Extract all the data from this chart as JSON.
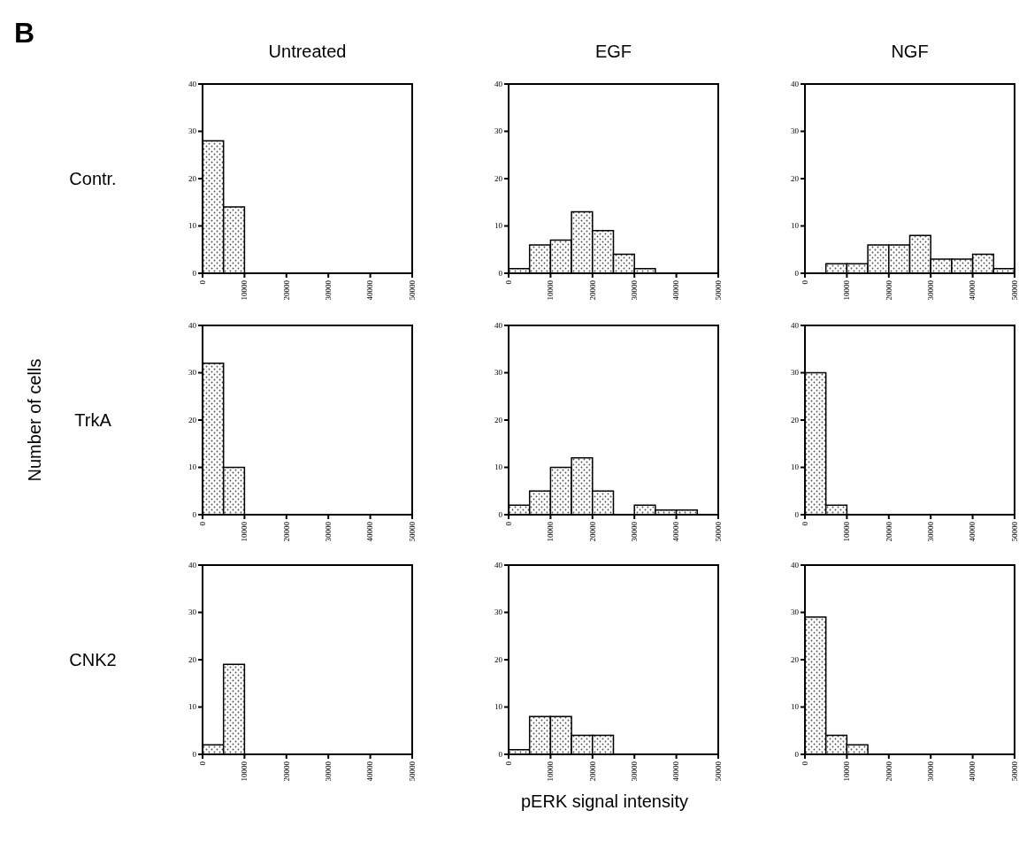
{
  "chart_data": [
    {
      "type": "histogram",
      "title": "Untreated",
      "ylabel": "Contr.",
      "annotations": [
        "B"
      ],
      "bins": [
        0,
        5000,
        10000,
        15000,
        20000,
        25000,
        30000,
        35000,
        40000,
        45000,
        50000
      ],
      "values": [
        28,
        14,
        0,
        0,
        0,
        0,
        0,
        0,
        0,
        0
      ],
      "color": "#000000",
      "xlim": [
        0,
        50000
      ],
      "xticks": [
        0,
        10000,
        20000,
        30000,
        40000,
        50000
      ],
      "ylim": [
        0,
        40
      ],
      "yticks": [
        0,
        10,
        20,
        30,
        40
      ]
    },
    {
      "type": "histogram",
      "title": "EGF",
      "bins": [
        0,
        5000,
        10000,
        15000,
        20000,
        25000,
        30000,
        35000,
        40000,
        45000,
        50000
      ],
      "values": [
        1,
        6,
        7,
        13,
        9,
        4,
        1,
        0,
        0,
        0
      ],
      "color": "#000000",
      "xlim": [
        0,
        50000
      ],
      "xticks": [
        0,
        10000,
        20000,
        30000,
        40000,
        50000
      ],
      "ylim": [
        0,
        40
      ],
      "yticks": [
        0,
        10,
        20,
        30,
        40
      ]
    },
    {
      "type": "histogram",
      "title": "NGF",
      "bins": [
        0,
        5000,
        10000,
        15000,
        20000,
        25000,
        30000,
        35000,
        40000,
        45000,
        50000
      ],
      "values": [
        0,
        2,
        2,
        6,
        6,
        8,
        3,
        3,
        4,
        1
      ],
      "color": "#000000",
      "xlim": [
        0,
        50000
      ],
      "xticks": [
        0,
        10000,
        20000,
        30000,
        40000,
        50000
      ],
      "ylim": [
        0,
        40
      ],
      "yticks": [
        0,
        10,
        20,
        30,
        40
      ]
    },
    {
      "type": "histogram",
      "ylabel": "TrkA",
      "annotations": [
        "Number of cells"
      ],
      "bins": [
        0,
        5000,
        10000,
        15000,
        20000,
        25000,
        30000,
        35000,
        40000,
        45000,
        50000
      ],
      "values": [
        32,
        10,
        0,
        0,
        0,
        0,
        0,
        0,
        0,
        0
      ],
      "color": "#000000",
      "xlim": [
        0,
        50000
      ],
      "xticks": [
        0,
        10000,
        20000,
        30000,
        40000,
        50000
      ],
      "ylim": [
        0,
        40
      ],
      "yticks": [
        0,
        10,
        20,
        30,
        40
      ]
    },
    {
      "type": "histogram",
      "bins": [
        0,
        5000,
        10000,
        15000,
        20000,
        25000,
        30000,
        35000,
        40000,
        45000,
        50000
      ],
      "values": [
        2,
        5,
        10,
        12,
        5,
        0,
        2,
        1,
        1,
        0
      ],
      "color": "#000000",
      "xlim": [
        0,
        50000
      ],
      "xticks": [
        0,
        10000,
        20000,
        30000,
        40000,
        50000
      ],
      "ylim": [
        0,
        40
      ],
      "yticks": [
        0,
        10,
        20,
        30,
        40
      ]
    },
    {
      "type": "histogram",
      "bins": [
        0,
        5000,
        10000,
        15000,
        20000,
        25000,
        30000,
        35000,
        40000,
        45000,
        50000
      ],
      "values": [
        30,
        2,
        0,
        0,
        0,
        0,
        0,
        0,
        0,
        0
      ],
      "color": "#000000",
      "xlim": [
        0,
        50000
      ],
      "xticks": [
        0,
        10000,
        20000,
        30000,
        40000,
        50000
      ],
      "ylim": [
        0,
        40
      ],
      "yticks": [
        0,
        10,
        20,
        30,
        40
      ]
    },
    {
      "type": "histogram",
      "ylabel": "CNK2",
      "bins": [
        0,
        5000,
        10000,
        15000,
        20000,
        25000,
        30000,
        35000,
        40000,
        45000,
        50000
      ],
      "values": [
        2,
        19,
        0,
        0,
        0,
        0,
        0,
        0,
        0,
        0
      ],
      "color": "#000000",
      "xlim": [
        0,
        50000
      ],
      "xticks": [
        0,
        10000,
        20000,
        30000,
        40000,
        50000
      ],
      "ylim": [
        0,
        40
      ],
      "yticks": [
        0,
        10,
        20,
        30,
        40
      ]
    },
    {
      "type": "histogram",
      "xlabel": "pERK signal intensity",
      "bins": [
        0,
        5000,
        10000,
        15000,
        20000,
        25000,
        30000,
        35000,
        40000,
        45000,
        50000
      ],
      "values": [
        1,
        8,
        8,
        4,
        4,
        0,
        0,
        0,
        0,
        0
      ],
      "color": "#000000",
      "xlim": [
        0,
        50000
      ],
      "xticks": [
        0,
        10000,
        20000,
        30000,
        40000,
        50000
      ],
      "ylim": [
        0,
        40
      ],
      "yticks": [
        0,
        10,
        20,
        30,
        40
      ]
    },
    {
      "type": "histogram",
      "bins": [
        0,
        5000,
        10000,
        15000,
        20000,
        25000,
        30000,
        35000,
        40000,
        45000,
        50000
      ],
      "values": [
        29,
        4,
        2,
        0,
        0,
        0,
        0,
        0,
        0,
        0
      ],
      "color": "#000000",
      "xlim": [
        0,
        50000
      ],
      "xticks": [
        0,
        10000,
        20000,
        30000,
        40000,
        50000
      ],
      "ylim": [
        0,
        40
      ],
      "yticks": [
        0,
        10,
        20,
        30,
        40
      ]
    }
  ]
}
